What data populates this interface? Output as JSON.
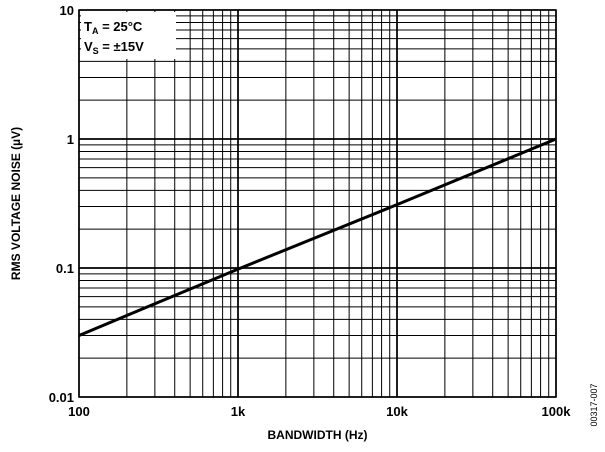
{
  "chart_data": {
    "type": "line",
    "title": "",
    "xlabel": "BANDWIDTH (Hz)",
    "ylabel": "RMS VOLTAGE NOISE (µV)",
    "x_scale": "log",
    "y_scale": "log",
    "xlim": [
      100,
      100000
    ],
    "ylim": [
      0.01,
      10
    ],
    "grid": true,
    "x_ticks": [
      100,
      1000,
      10000,
      100000
    ],
    "x_tick_labels": [
      "100",
      "1k",
      "10k",
      "100k"
    ],
    "y_ticks": [
      0.01,
      0.1,
      1,
      10
    ],
    "y_tick_labels": [
      "0.01",
      "0.1",
      "1",
      "10"
    ],
    "series": [
      {
        "x": [
          100,
          1000,
          10000,
          100000
        ],
        "y": [
          0.03,
          0.098,
          0.31,
          1.0
        ],
        "color": "#000000"
      }
    ],
    "annotation": {
      "line1_main": "T",
      "line1_sub": "A",
      "line1_rest": " = 25°C",
      "line2_main": "V",
      "line2_sub": "S",
      "line2_rest": " = ±15V"
    },
    "figure_id": "00317-007"
  }
}
